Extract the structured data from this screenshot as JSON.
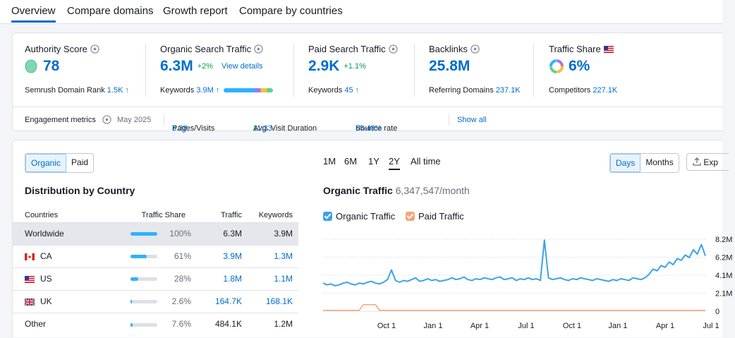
{
  "tabs": [
    "Overview",
    "Compare domains",
    "Growth report",
    "Compare by countries"
  ],
  "metrics": {
    "authority": {
      "title": "Authority Score",
      "value": "78",
      "sub_label": "Semrush Domain Rank",
      "sub_value": "1.5K"
    },
    "organic": {
      "title": "Organic Search Traffic",
      "value": "6.3M",
      "delta": "+2%",
      "link": "View details",
      "sub_label": "Keywords",
      "sub_value": "3.9M"
    },
    "paid": {
      "title": "Paid Search Traffic",
      "value": "2.9K",
      "delta": "+1.1%",
      "sub_label": "Keywords",
      "sub_value": "45"
    },
    "backlinks": {
      "title": "Backlinks",
      "value": "25.8M",
      "sub_label": "Referring Domains",
      "sub_value": "237.1K"
    },
    "share": {
      "title": "Traffic Share",
      "value": "6%",
      "sub_label": "Competitors",
      "sub_value": "227.1K"
    }
  },
  "engagement": {
    "label": "Engagement metrics",
    "date": "May 2025",
    "pages_label": "Pages/Visits",
    "pages_value": "3.38",
    "duration_label": "Avg. Visit Duration",
    "duration_value": "11:33",
    "bounce_label": "Bounce rate",
    "bounce_value": "55.48%",
    "show_all": "Show all"
  },
  "toggle": {
    "organic": "Organic",
    "paid": "Paid"
  },
  "distribution": {
    "title": "Distribution by Country",
    "headers": {
      "countries": "Countries",
      "share": "Traffic Share",
      "traffic": "Traffic",
      "keywords": "Keywords"
    },
    "rows": [
      {
        "country": "Worldwide",
        "share": "100%",
        "share_fraction": 1.0,
        "traffic": "6.3M",
        "keywords": "3.9M",
        "flag": ""
      },
      {
        "country": "CA",
        "share": "61%",
        "share_fraction": 0.61,
        "traffic": "3.9M",
        "keywords": "1.3M",
        "flag": "ca-flag-icon"
      },
      {
        "country": "US",
        "share": "28%",
        "share_fraction": 0.28,
        "traffic": "1.8M",
        "keywords": "1.1M",
        "flag": "us-flag-icon"
      },
      {
        "country": "UK",
        "share": "2.6%",
        "share_fraction": 0.026,
        "traffic": "164.7K",
        "keywords": "168.1K",
        "flag": "uk-flag-icon"
      },
      {
        "country": "Other",
        "share": "7.6%",
        "share_fraction": 0.076,
        "traffic": "484.1K",
        "keywords": "1.2M",
        "flag": ""
      }
    ]
  },
  "periods": [
    "1M",
    "6M",
    "1Y",
    "2Y",
    "All time"
  ],
  "view_toggle": {
    "days": "Days",
    "months": "Months"
  },
  "export_label": "Exp",
  "chart": {
    "title": "Organic Traffic",
    "value": "6,347,547/month"
  },
  "legend": {
    "organic": "Organic Traffic",
    "paid": "Paid Traffic"
  },
  "colors": {
    "accent": "#006dca",
    "organic": "#3ba3e8",
    "paid": "#f5a578",
    "positive": "#00a05a"
  },
  "chart_data": {
    "type": "line",
    "x_ticks": [
      "Oct 1",
      "Jan 1",
      "Apr 1",
      "Jul 1",
      "Oct 1",
      "Jan 1",
      "Apr 1",
      "Jul 1"
    ],
    "y_ticks": [
      "8.2M",
      "6.2M",
      "4.1M",
      "2.1M",
      "0"
    ],
    "ylim": [
      0,
      8200000
    ],
    "series": [
      {
        "name": "Organic Traffic",
        "values": [
          3.2,
          3.0,
          3.1,
          2.9,
          3.0,
          3.2,
          3.3,
          3.1,
          3.0,
          3.2,
          3.1,
          3.3,
          3.4,
          3.2,
          3.1,
          3.3,
          3.6,
          4.7,
          3.5,
          3.3,
          3.5,
          3.4,
          3.6,
          3.8,
          3.4,
          3.5,
          3.7,
          3.5,
          3.6,
          3.4,
          3.5,
          3.6,
          3.8,
          3.6,
          3.7,
          3.9,
          3.6,
          3.5,
          3.7,
          3.6,
          3.8,
          3.7,
          3.6,
          3.8,
          3.9,
          3.6,
          3.7,
          3.8,
          3.5,
          3.7,
          3.6,
          3.8,
          3.6,
          3.7,
          3.5,
          8.1,
          3.8,
          3.6,
          3.7,
          3.8,
          3.6,
          3.5,
          3.7,
          3.6,
          3.8,
          3.7,
          3.6,
          3.5,
          3.7,
          3.6,
          3.5,
          3.4,
          3.6,
          3.5,
          3.7,
          3.6,
          3.5,
          3.8,
          3.7,
          3.6,
          3.8,
          4.2,
          4.8,
          4.6,
          5.2,
          5.0,
          5.6,
          5.3,
          6.0,
          5.8,
          6.4,
          6.1,
          7.0,
          6.5,
          7.6,
          6.3
        ]
      },
      {
        "name": "Paid Traffic",
        "values": [
          0.1,
          0.1,
          0.1,
          0.1,
          0.1,
          0.1,
          0.1,
          0.1,
          0.1,
          0.1,
          0.75,
          0.75,
          0.75,
          0.75,
          0.1,
          0.1,
          0.1,
          0.1,
          0.1,
          0.1,
          0.1,
          0.1,
          0.1,
          0.1,
          0.1,
          0.1,
          0.1,
          0.1,
          0.1,
          0.1,
          0.1,
          0.1,
          0.1,
          0.1,
          0.1,
          0.1,
          0.1,
          0.1,
          0.1,
          0.1,
          0.1,
          0.1,
          0.1,
          0.1,
          0.1,
          0.1,
          0.1,
          0.1,
          0.1,
          0.1,
          0.1,
          0.1,
          0.1,
          0.1,
          0.1,
          0.1,
          0.1,
          0.1,
          0.1,
          0.1,
          0.1,
          0.1,
          0.1,
          0.1,
          0.1,
          0.1,
          0.1,
          0.1,
          0.1,
          0.1,
          0.1,
          0.1,
          0.1,
          0.1,
          0.1,
          0.1,
          0.1,
          0.1,
          0.1,
          0.1,
          0.1,
          0.1,
          0.1,
          0.1,
          0.1,
          0.1,
          0.1,
          0.1,
          0.1,
          0.1,
          0.1,
          0.1,
          0.1,
          0.1,
          0.1,
          0.1
        ]
      }
    ],
    "grid": true
  }
}
